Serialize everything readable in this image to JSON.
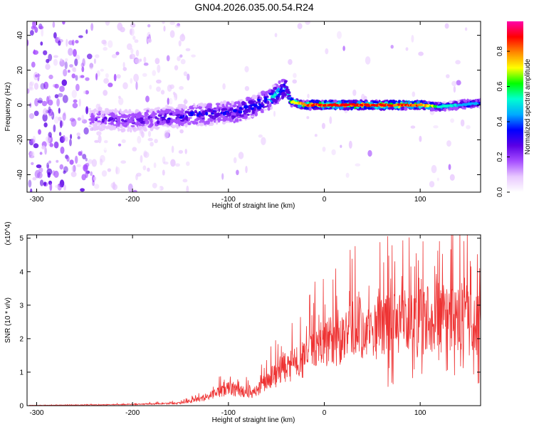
{
  "title": "GN04.2026.035.00.54.R24",
  "chart_data": [
    {
      "type": "heatmap",
      "xlabel": "Height of straight line (km)",
      "ylabel": "Frequency (Hz)",
      "xlim": [
        -310,
        163
      ],
      "ylim": [
        -50,
        48
      ],
      "xticks": [
        -300,
        -200,
        -100,
        0,
        100
      ],
      "yticks": [
        -40,
        -20,
        0,
        20,
        40
      ],
      "colorbar": {
        "label": "Normalized spectral amplitude",
        "range": [
          0,
          0.97
        ],
        "ticks": [
          0.0,
          0.2,
          0.4,
          0.6,
          0.8
        ],
        "colors": [
          "#ffffff",
          "#e8c8ff",
          "#a64dff",
          "#5a00e6",
          "#0000ff",
          "#00aaff",
          "#00ffd0",
          "#00ff00",
          "#ffff00",
          "#ff8800",
          "#ff0000",
          "#ff00aa"
        ]
      },
      "ridge": {
        "x": [
          -240,
          -200,
          -160,
          -120,
          -90,
          -70,
          -55,
          -45,
          -40,
          -35,
          -20,
          0,
          50,
          100,
          120,
          140,
          160
        ],
        "y": [
          -8,
          -9,
          -7,
          -5,
          -4,
          0,
          4,
          8,
          10,
          2,
          0,
          0,
          0,
          0,
          -1,
          0,
          1
        ],
        "amplitude": [
          0.25,
          0.3,
          0.35,
          0.38,
          0.4,
          0.45,
          0.5,
          0.55,
          0.5,
          0.7,
          0.9,
          0.95,
          0.95,
          0.9,
          0.6,
          0.5,
          0.45
        ]
      }
    },
    {
      "type": "line",
      "xlabel": "Height of straight line (km)",
      "ylabel": "SNR (10 * v/v)",
      "yscale_note": "(x10^4)",
      "xlim": [
        -310,
        163
      ],
      "ylim": [
        0,
        5.1
      ],
      "xticks": [
        -300,
        -200,
        -100,
        0,
        100
      ],
      "yticks": [
        0,
        1,
        2,
        3,
        4,
        5
      ],
      "color": "#ee3333",
      "envelope": {
        "x": [
          -305,
          -250,
          -200,
          -150,
          -125,
          -100,
          -75,
          -55,
          -40,
          -25,
          -10,
          0,
          20,
          35,
          50,
          80,
          100,
          120,
          140,
          160
        ],
        "y": [
          0.01,
          0.02,
          0.04,
          0.08,
          0.25,
          0.55,
          0.4,
          0.9,
          1.2,
          1.4,
          1.9,
          2.0,
          2.2,
          2.55,
          2.5,
          2.6,
          2.7,
          2.8,
          2.7,
          2.6
        ]
      }
    }
  ]
}
